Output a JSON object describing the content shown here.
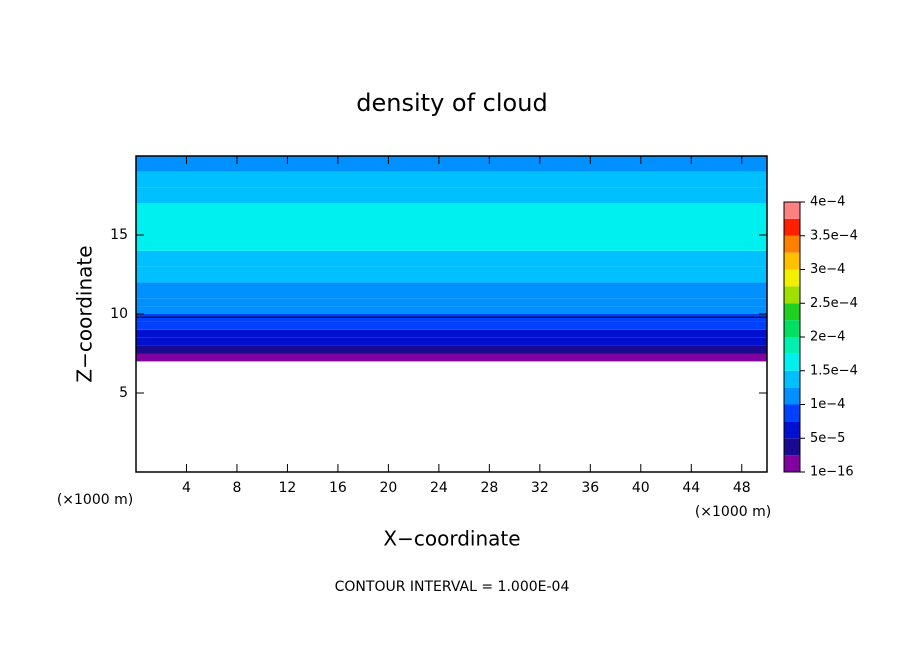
{
  "chart_data": {
    "type": "contour",
    "title": "density of cloud",
    "xlabel": "X−coordinate",
    "ylabel": "Z−coordinate",
    "x_unit": "(×1000 m)",
    "y_unit": "(×1000 m)",
    "annotation": "CONTOUR INTERVAL = 1.000E-04",
    "xlim": [
      0,
      50
    ],
    "ylim": [
      0,
      20
    ],
    "xticks": [
      4,
      8,
      12,
      16,
      20,
      24,
      28,
      32,
      36,
      40,
      44,
      48
    ],
    "yticks": [
      5,
      10,
      15
    ],
    "clim": [
      0,
      0.0004
    ],
    "colors": [
      "#8000a0",
      "#1a0a90",
      "#0010d0",
      "#0040ff",
      "#0090ff",
      "#00c0ff",
      "#00f0f0",
      "#00f0b0",
      "#00e060",
      "#20d020",
      "#a0e000",
      "#f0f000",
      "#ffc000",
      "#ff8000",
      "#ff2000",
      "#ff8080"
    ],
    "cticks": [
      {
        "value": 1e-16,
        "label": "1e−16"
      },
      {
        "value": 5e-05,
        "label": "5e−5"
      },
      {
        "value": 0.0001,
        "label": "1e−4"
      },
      {
        "value": 0.00015,
        "label": "1.5e−4"
      },
      {
        "value": 0.0002,
        "label": "2e−4"
      },
      {
        "value": 0.00025,
        "label": "2.5e−4"
      },
      {
        "value": 0.0003,
        "label": "3e−4"
      },
      {
        "value": 0.00035,
        "label": "3.5e−4"
      },
      {
        "value": 0.0004,
        "label": "4e−4"
      }
    ],
    "profile": {
      "z": [
        7.0,
        7.5,
        8.0,
        8.5,
        9.0,
        9.5,
        10.0,
        10.5,
        11,
        12,
        13,
        14,
        17,
        18,
        19
      ],
      "values": [
        1e-05,
        3e-05,
        5.5e-05,
        7e-05,
        8.5e-05,
        9.5e-05,
        0.000105,
        0.000115,
        0.00012,
        0.00013,
        0.000145,
        0.000155,
        0.000145,
        0.00013,
        0.00012
      ]
    },
    "contour_z": 9.8
  }
}
